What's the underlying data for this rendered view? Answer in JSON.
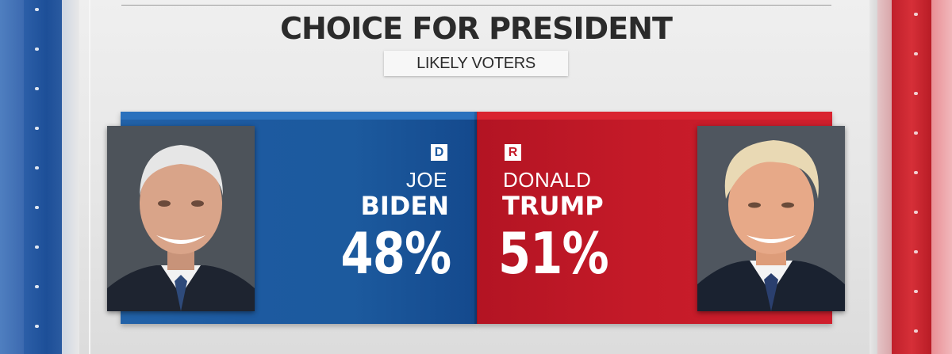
{
  "chart_data": {
    "type": "bar",
    "title": "CHOICE FOR PRESIDENT",
    "subtitle": "LIKELY VOTERS",
    "categories": [
      "JOE BIDEN",
      "DONALD TRUMP"
    ],
    "series": [
      {
        "name": "Likely voters",
        "values": [
          48,
          51
        ]
      }
    ],
    "candidates": [
      {
        "party": "D",
        "first_name": "JOE",
        "last_name": "BIDEN",
        "value": 48,
        "label": "48%",
        "color": "#1d5aa0"
      },
      {
        "party": "R",
        "first_name": "DONALD",
        "last_name": "TRUMP",
        "value": 51,
        "label": "51%",
        "color": "#c41a28"
      }
    ],
    "unit": "%"
  },
  "colors": {
    "democrat": "#1d5aa0",
    "republican": "#c41a28",
    "title_text": "#2b2b2b"
  }
}
